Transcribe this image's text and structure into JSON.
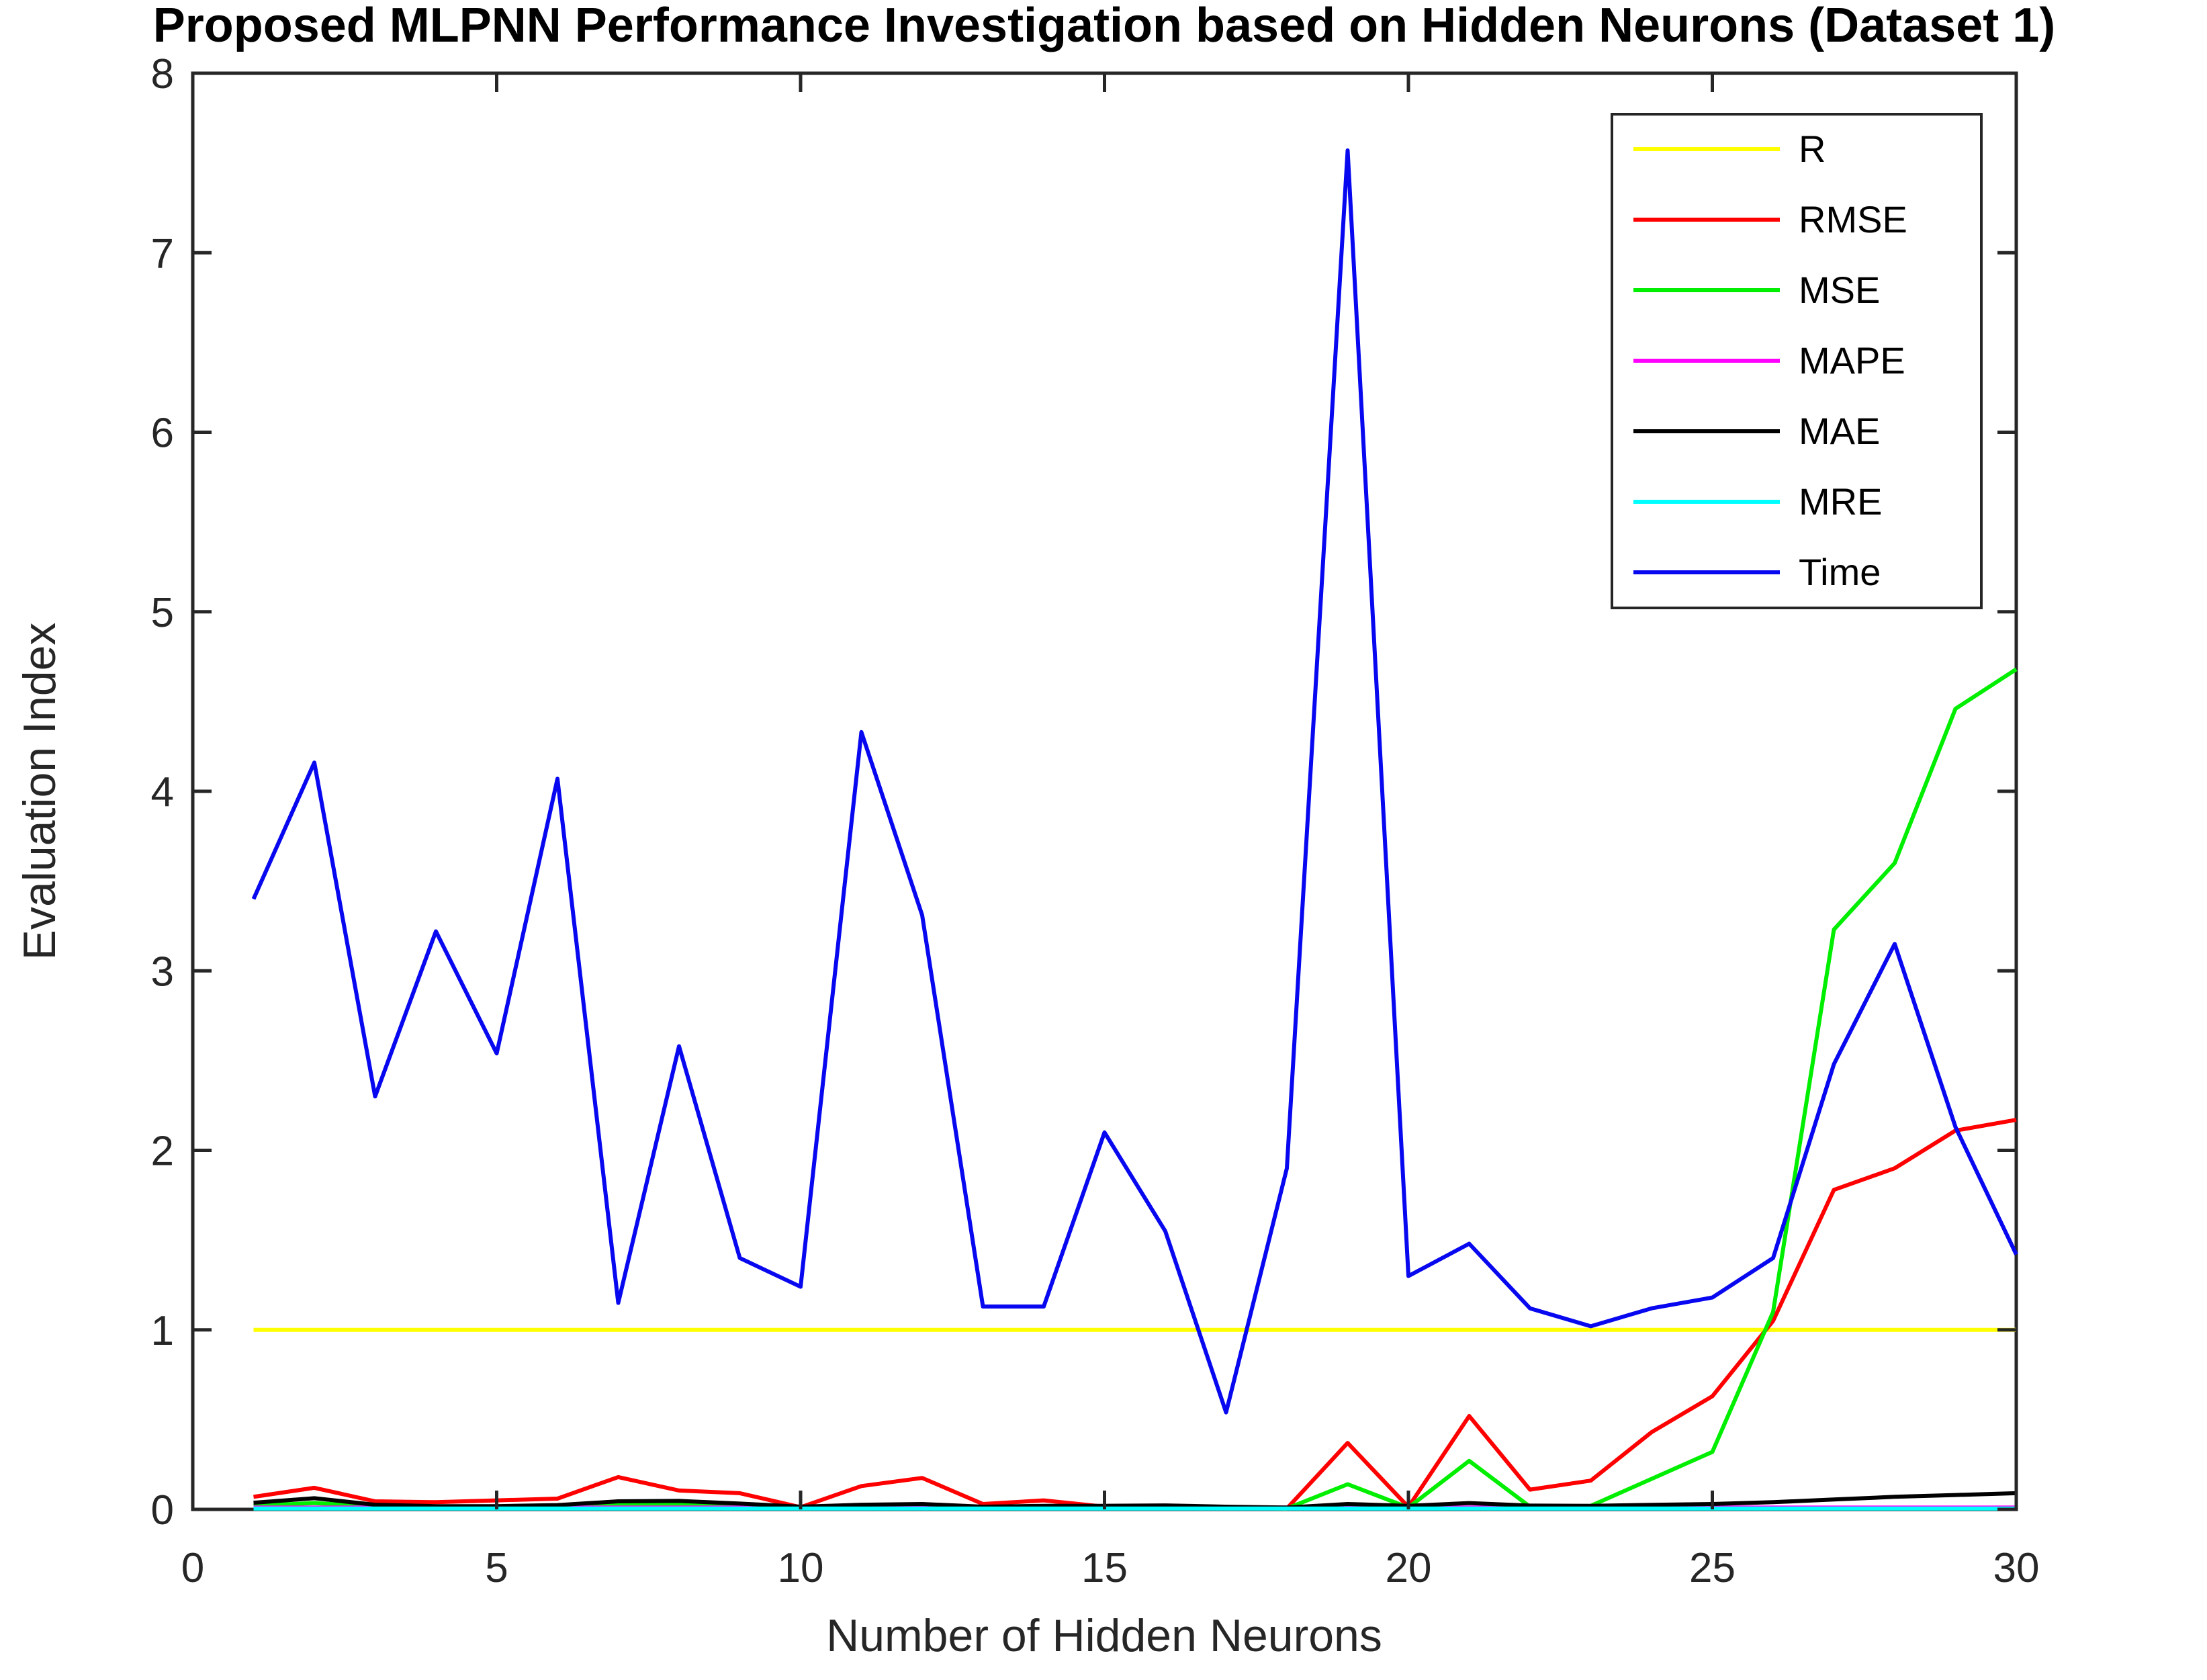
{
  "chart_data": {
    "type": "line",
    "title": "Proposed MLPNN Performance Investigation based on Hidden Neurons (Dataset 1)",
    "xlabel": "Number of Hidden Neurons",
    "ylabel": "Evaluation Index",
    "xlim": [
      0,
      30
    ],
    "ylim": [
      0,
      8
    ],
    "xticks": [
      0,
      5,
      10,
      15,
      20,
      25,
      30
    ],
    "yticks": [
      0,
      1,
      2,
      3,
      4,
      5,
      6,
      7,
      8
    ],
    "grid": false,
    "legend_position": "top-right",
    "axis_color": "#262626",
    "x": [
      1,
      2,
      3,
      4,
      5,
      6,
      7,
      8,
      9,
      10,
      11,
      12,
      13,
      14,
      15,
      16,
      17,
      18,
      19,
      20,
      21,
      22,
      23,
      24,
      25,
      26,
      27,
      28,
      29,
      30
    ],
    "series": [
      {
        "name": "R",
        "color": "#ffff00",
        "values": [
          1,
          1,
          1,
          1,
          1,
          1,
          1,
          1,
          1,
          1,
          1,
          1,
          1,
          1,
          1,
          1,
          1,
          1,
          1,
          1,
          1,
          1,
          1,
          1,
          1,
          1,
          1,
          1,
          1,
          1
        ]
      },
      {
        "name": "RMSE",
        "color": "#ff0000",
        "values": [
          0.07,
          0.12,
          0.045,
          0.04,
          0.05,
          0.06,
          0.18,
          0.105,
          0.09,
          0.012,
          0.13,
          0.175,
          0.03,
          0.05,
          0.015,
          0.02,
          0.012,
          0.005,
          0.37,
          0.013,
          0.52,
          0.11,
          0.16,
          0.43,
          0.63,
          1.05,
          1.78,
          1.9,
          2.11,
          2.17
        ]
      },
      {
        "name": "MSE",
        "color": "#00ee00",
        "values": [
          0.02,
          0.035,
          0.015,
          0.012,
          0.012,
          0.015,
          0.028,
          0.026,
          0.012,
          0.008,
          0.02,
          0.027,
          0.01,
          0.012,
          0.01,
          0.012,
          0.008,
          0.005,
          0.14,
          0.01,
          0.27,
          0.015,
          0.02,
          0.17,
          0.32,
          1.1,
          3.23,
          3.6,
          4.46,
          4.68
        ]
      },
      {
        "name": "MAPE",
        "color": "#ff00ff",
        "values": [
          0.01,
          0.01,
          0.01,
          0.01,
          0.01,
          0.01,
          0.01,
          0.01,
          0.01,
          0.01,
          0.01,
          0.01,
          0.01,
          0.01,
          0.01,
          0.01,
          0.01,
          0.01,
          0.01,
          0.01,
          0.01,
          0.01,
          0.01,
          0.01,
          0.01,
          0.01,
          0.01,
          0.01,
          0.01,
          0.01
        ]
      },
      {
        "name": "MAE",
        "color": "#000000",
        "values": [
          0.037,
          0.062,
          0.026,
          0.018,
          0.018,
          0.024,
          0.045,
          0.047,
          0.032,
          0.015,
          0.026,
          0.03,
          0.015,
          0.02,
          0.02,
          0.022,
          0.015,
          0.01,
          0.03,
          0.02,
          0.035,
          0.021,
          0.02,
          0.025,
          0.03,
          0.04,
          0.055,
          0.07,
          0.08,
          0.09
        ]
      },
      {
        "name": "MRE",
        "color": "#00ffff",
        "values": [
          0.005,
          0.005,
          0.005,
          0.005,
          0.005,
          0.005,
          0.005,
          0.005,
          0.005,
          0.005,
          0.005,
          0.005,
          0.005,
          0.005,
          0.005,
          0.005,
          0.005,
          0.005,
          0.005,
          0.005,
          0.005,
          0.005,
          0.005,
          0.005,
          0.005,
          0.005,
          0.005,
          0.005,
          0.005,
          0.005
        ]
      },
      {
        "name": "Time",
        "color": "#0808f0",
        "values": [
          3.4,
          4.16,
          2.3,
          3.22,
          2.54,
          4.07,
          1.15,
          2.58,
          1.4,
          1.24,
          4.33,
          3.31,
          1.13,
          1.13,
          2.1,
          1.55,
          0.54,
          1.9,
          7.57,
          1.3,
          1.48,
          1.12,
          1.02,
          1.12,
          1.18,
          1.4,
          2.48,
          3.15,
          2.13,
          1.42
        ]
      }
    ]
  }
}
